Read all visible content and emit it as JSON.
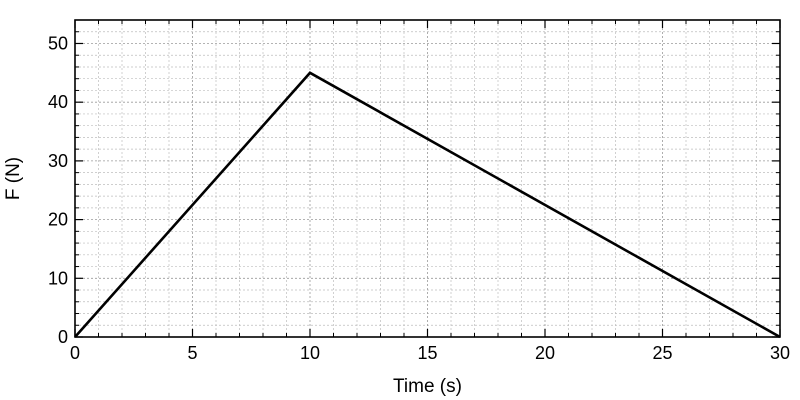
{
  "chart_data": {
    "type": "line",
    "title": "",
    "xlabel": "Time (s)",
    "ylabel": "F (N)",
    "xlim": [
      0,
      30
    ],
    "ylim": [
      0,
      54
    ],
    "x_ticks": [
      0,
      5,
      10,
      15,
      20,
      25,
      30
    ],
    "y_ticks": [
      0,
      10,
      20,
      30,
      40,
      50
    ],
    "x_minor_step": 1,
    "y_minor_step": 2,
    "grid": true,
    "legend": "none",
    "line_color": "#000000",
    "series": [
      {
        "x": [
          0,
          10,
          30
        ],
        "y": [
          0,
          45,
          0
        ]
      }
    ]
  }
}
